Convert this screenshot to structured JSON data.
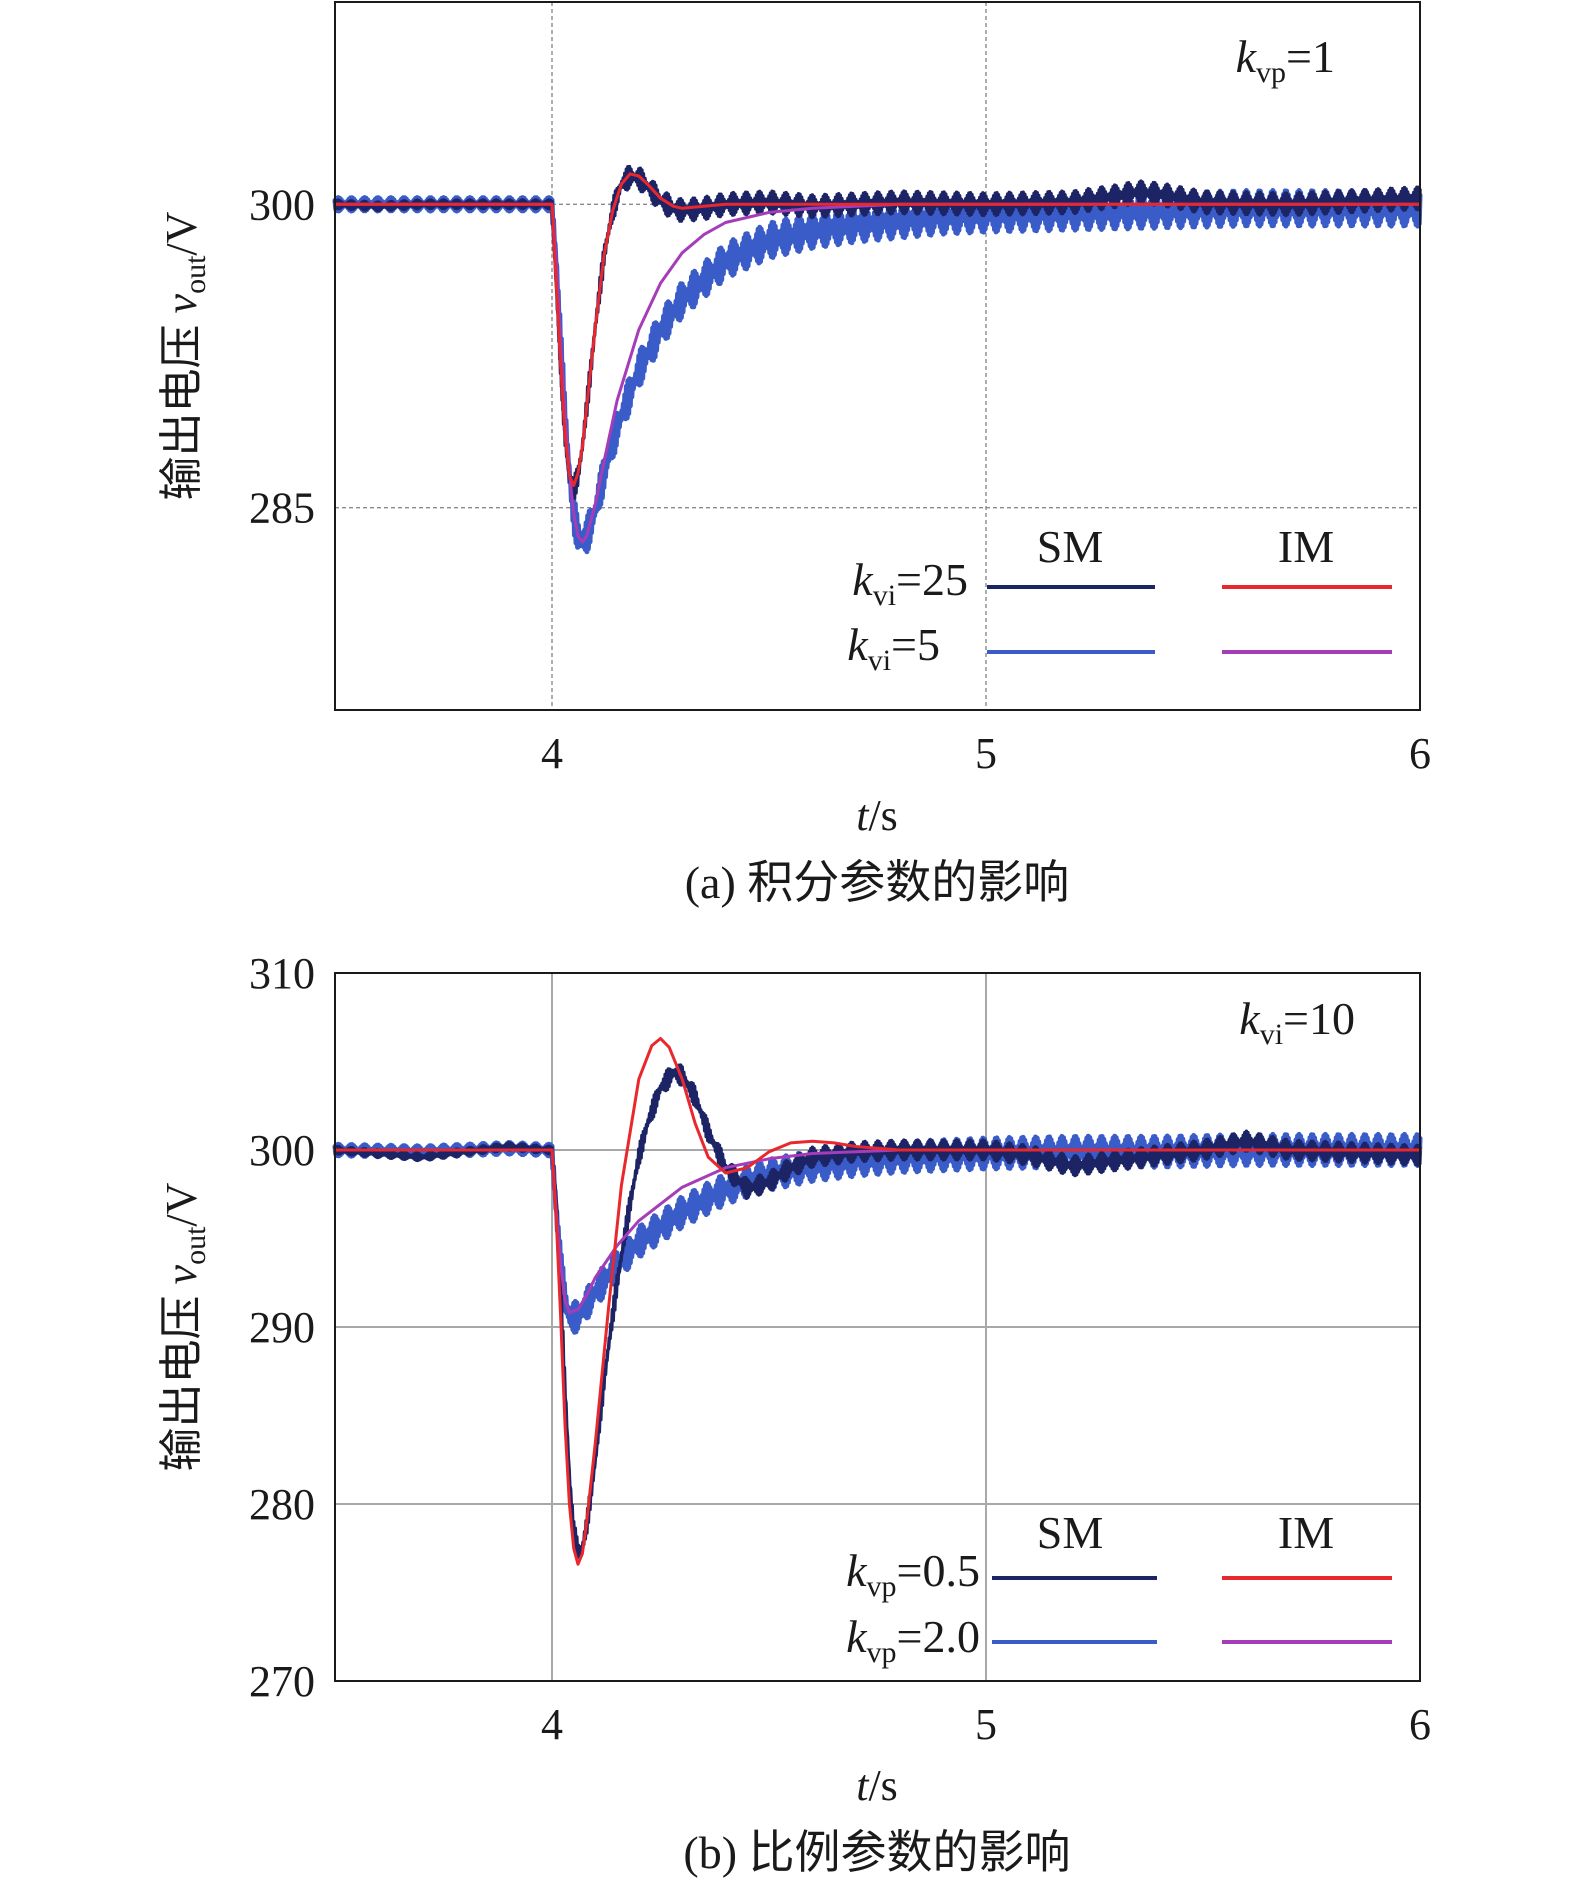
{
  "colors": {
    "sm_k1": "#1c2466",
    "sm_k2": "#3a5cc8",
    "im_k1": "#e8282c",
    "im_k2": "#a53cb8"
  },
  "chart_data": [
    {
      "type": "line",
      "caption": "(a) 积分参数的影响",
      "ylabel_main": "输出电压 ",
      "ylabel_var": "v",
      "ylabel_sub": "out",
      "ylabel_unit": "/V",
      "xlabel_var": "t",
      "xlabel_unit": "/s",
      "xlim": [
        3.5,
        6
      ],
      "ylim": [
        275,
        310
      ],
      "xticks": [
        4,
        5,
        6
      ],
      "xtick_labels": [
        "4",
        "5",
        "6"
      ],
      "yticks": [
        285,
        300
      ],
      "ytick_labels": [
        "285",
        "300"
      ],
      "grid": "dashed",
      "note_var": "k",
      "note_sub": "vp",
      "note_val": "=1",
      "legend": {
        "placement": "bottom-right",
        "col_headers": [
          "SM",
          "IM"
        ],
        "rows": [
          {
            "var": "k",
            "sub": "vi",
            "val": "=25"
          },
          {
            "var": "k",
            "sub": "vi",
            "val": "=5"
          }
        ]
      },
      "series": [
        {
          "group": "SM",
          "row": 0,
          "color_key": "sm_k1",
          "ripple": 0.35,
          "x": [
            3.5,
            3.6,
            3.7,
            3.8,
            3.9,
            3.99,
            4.0,
            4.01,
            4.02,
            4.03,
            4.04,
            4.05,
            4.06,
            4.07,
            4.08,
            4.1,
            4.12,
            4.14,
            4.16,
            4.18,
            4.2,
            4.22,
            4.25,
            4.28,
            4.3,
            4.35,
            4.4,
            4.5,
            4.6,
            4.7,
            4.8,
            5.0,
            5.2,
            5.3,
            5.35,
            5.4,
            5.5,
            5.7,
            6.0
          ],
          "y": [
            300.0,
            299.9,
            300.0,
            300.0,
            300.0,
            300.0,
            300.0,
            296.0,
            292.0,
            288.5,
            286.5,
            285.9,
            286.6,
            288.0,
            290.0,
            294.0,
            297.5,
            299.7,
            301.0,
            301.4,
            301.3,
            300.9,
            300.2,
            299.8,
            299.7,
            299.8,
            300.0,
            300.1,
            299.9,
            300.0,
            300.1,
            300.0,
            300.1,
            300.4,
            300.6,
            300.5,
            300.1,
            300.0,
            300.3
          ]
        },
        {
          "group": "SM",
          "row": 1,
          "color_key": "sm_k2",
          "ripple": 0.55,
          "x": [
            3.5,
            3.7,
            3.9,
            3.99,
            4.0,
            4.01,
            4.02,
            4.03,
            4.04,
            4.05,
            4.06,
            4.07,
            4.08,
            4.1,
            4.12,
            4.15,
            4.2,
            4.25,
            4.3,
            4.4,
            4.5,
            4.6,
            4.7,
            4.8,
            4.9,
            5.0,
            5.2,
            5.4,
            5.6,
            5.8,
            6.0
          ],
          "y": [
            300.0,
            300.0,
            300.0,
            300.0,
            300.0,
            297.0,
            293.0,
            289.5,
            286.7,
            284.7,
            283.6,
            283.3,
            283.6,
            284.9,
            286.7,
            289.0,
            291.8,
            293.8,
            295.3,
            297.2,
            298.2,
            298.7,
            299.0,
            299.2,
            299.4,
            299.5,
            299.6,
            299.7,
            299.8,
            299.8,
            299.8
          ]
        },
        {
          "group": "IM",
          "row": 0,
          "color_key": "im_k1",
          "ripple": 0,
          "x": [
            3.5,
            3.99,
            4.0,
            4.01,
            4.02,
            4.03,
            4.04,
            4.05,
            4.06,
            4.07,
            4.08,
            4.1,
            4.12,
            4.14,
            4.16,
            4.18,
            4.2,
            4.22,
            4.25,
            4.28,
            4.3,
            4.35,
            4.4,
            4.5,
            6.0
          ],
          "y": [
            300.0,
            300.0,
            300.0,
            296.0,
            292.0,
            288.6,
            286.6,
            286.1,
            286.7,
            288.0,
            290.0,
            294.0,
            297.5,
            299.7,
            301.0,
            301.5,
            301.4,
            301.0,
            300.3,
            299.9,
            299.8,
            299.9,
            300.0,
            300.0,
            300.0
          ]
        },
        {
          "group": "IM",
          "row": 1,
          "color_key": "im_k2",
          "ripple": 0,
          "x": [
            3.5,
            3.99,
            4.0,
            4.01,
            4.02,
            4.03,
            4.04,
            4.05,
            4.06,
            4.07,
            4.08,
            4.1,
            4.12,
            4.15,
            4.2,
            4.25,
            4.3,
            4.35,
            4.4,
            4.5,
            4.6,
            4.7,
            4.8,
            4.9,
            5.0,
            6.0
          ],
          "y": [
            300.0,
            300.0,
            300.0,
            297.0,
            293.0,
            289.5,
            286.7,
            284.7,
            283.6,
            283.3,
            283.6,
            285.2,
            287.3,
            290.3,
            293.8,
            296.1,
            297.6,
            298.5,
            299.1,
            299.6,
            299.8,
            299.9,
            300.0,
            300.0,
            300.0,
            300.0
          ]
        }
      ]
    },
    {
      "type": "line",
      "caption": "(b) 比例参数的影响",
      "ylabel_main": "输出电压 ",
      "ylabel_var": "v",
      "ylabel_sub": "out",
      "ylabel_unit": "/V",
      "xlabel_var": "t",
      "xlabel_unit": "/s",
      "xlim": [
        3.5,
        6
      ],
      "ylim": [
        270,
        310
      ],
      "xticks": [
        4,
        5,
        6
      ],
      "xtick_labels": [
        "4",
        "5",
        "6"
      ],
      "yticks": [
        270,
        280,
        290,
        300,
        310
      ],
      "ytick_labels": [
        "270",
        "280",
        "290",
        "300",
        "310"
      ],
      "grid": "solid",
      "note_var": "k",
      "note_sub": "vi",
      "note_val": "=10",
      "legend": {
        "placement": "bottom-right",
        "col_headers": [
          "SM",
          "IM"
        ],
        "rows": [
          {
            "var": "k",
            "sub": "vp",
            "val": "=0.5"
          },
          {
            "var": "k",
            "sub": "vp",
            "val": "=2.0"
          }
        ]
      },
      "series": [
        {
          "group": "SM",
          "row": 0,
          "color_key": "sm_k1",
          "ripple": 0.35,
          "x": [
            3.5,
            3.6,
            3.7,
            3.8,
            3.9,
            3.99,
            4.0,
            4.01,
            4.02,
            4.03,
            4.04,
            4.05,
            4.06,
            4.07,
            4.08,
            4.1,
            4.12,
            4.15,
            4.18,
            4.2,
            4.22,
            4.25,
            4.28,
            4.3,
            4.33,
            4.36,
            4.4,
            4.45,
            4.5,
            4.55,
            4.6,
            4.7,
            4.8,
            5.0,
            5.1,
            5.2,
            5.3,
            5.5,
            5.6,
            5.7,
            6.0
          ],
          "y": [
            300.0,
            299.8,
            299.6,
            299.9,
            300.2,
            300.0,
            300.0,
            297.0,
            292.0,
            286.5,
            281.5,
            278.5,
            277.3,
            277.5,
            278.8,
            282.5,
            287.0,
            292.5,
            297.0,
            299.6,
            301.5,
            303.5,
            304.4,
            304.2,
            303.0,
            301.0,
            299.0,
            297.8,
            298.2,
            299.0,
            299.6,
            299.9,
            300.0,
            300.0,
            299.7,
            299.1,
            299.4,
            300.0,
            300.5,
            300.0,
            299.7
          ]
        },
        {
          "group": "SM",
          "row": 1,
          "color_key": "sm_k2",
          "ripple": 0.55,
          "x": [
            3.5,
            3.7,
            3.9,
            3.99,
            4.0,
            4.01,
            4.02,
            4.03,
            4.04,
            4.06,
            4.08,
            4.1,
            4.15,
            4.2,
            4.3,
            4.4,
            4.5,
            4.6,
            4.7,
            4.8,
            4.9,
            5.0,
            5.2,
            5.4,
            5.6,
            5.8,
            6.0
          ],
          "y": [
            300.0,
            299.9,
            300.1,
            300.0,
            300.0,
            296.5,
            293.5,
            291.5,
            290.5,
            290.6,
            291.3,
            292.0,
            293.5,
            294.8,
            296.5,
            297.8,
            298.6,
            299.1,
            299.4,
            299.6,
            299.7,
            299.8,
            299.9,
            299.9,
            300.0,
            300.0,
            300.0
          ]
        },
        {
          "group": "IM",
          "row": 0,
          "color_key": "im_k1",
          "ripple": 0,
          "x": [
            3.5,
            3.99,
            4.0,
            4.01,
            4.02,
            4.03,
            4.04,
            4.05,
            4.06,
            4.07,
            4.08,
            4.1,
            4.13,
            4.16,
            4.2,
            4.23,
            4.25,
            4.27,
            4.3,
            4.33,
            4.36,
            4.4,
            4.45,
            4.5,
            4.55,
            4.6,
            4.65,
            4.7,
            4.8,
            5.0,
            6.0
          ],
          "y": [
            300.0,
            300.0,
            300.0,
            296.0,
            290.5,
            284.5,
            280.0,
            277.5,
            276.6,
            277.2,
            279.0,
            283.5,
            291.0,
            298.0,
            304.0,
            305.9,
            306.3,
            305.8,
            304.0,
            301.5,
            299.6,
            298.7,
            299.0,
            299.9,
            300.4,
            300.5,
            300.4,
            300.2,
            300.0,
            300.0,
            300.0
          ]
        },
        {
          "group": "IM",
          "row": 1,
          "color_key": "im_k2",
          "ripple": 0,
          "x": [
            3.5,
            3.99,
            4.0,
            4.01,
            4.02,
            4.03,
            4.04,
            4.06,
            4.08,
            4.1,
            4.15,
            4.2,
            4.3,
            4.4,
            4.5,
            4.6,
            4.7,
            4.8,
            5.0,
            6.0
          ],
          "y": [
            300.0,
            300.0,
            300.0,
            296.5,
            293.5,
            291.5,
            290.8,
            291.0,
            291.8,
            292.8,
            294.6,
            296.0,
            297.9,
            299.0,
            299.5,
            299.8,
            299.9,
            300.0,
            300.0,
            300.0
          ]
        }
      ]
    }
  ]
}
